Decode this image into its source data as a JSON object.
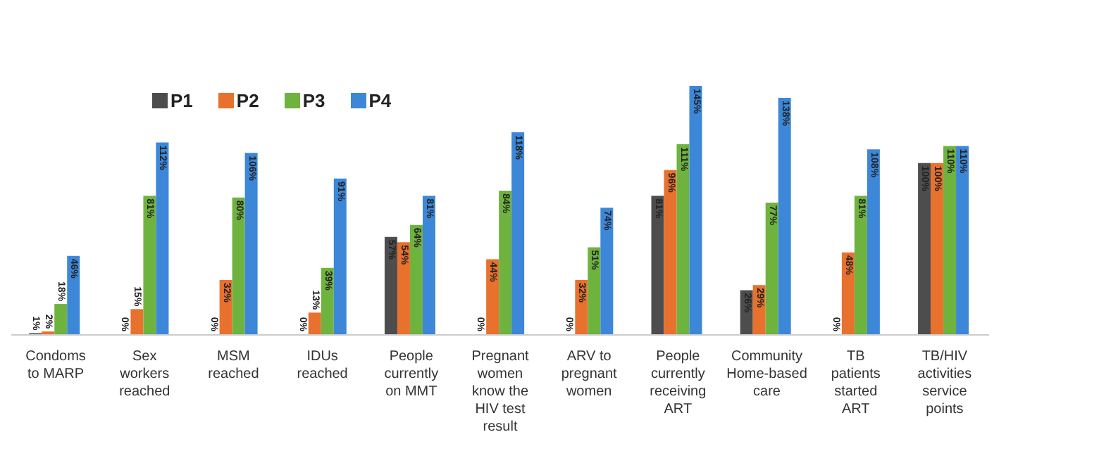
{
  "chart_data": {
    "type": "bar",
    "categories": [
      "Condoms to MARP",
      "Sex workers reached",
      "MSM reached",
      "IDUs reached",
      "People currently on MMT",
      "Pregnant women know the HIV test result",
      "ARV to pregnant women",
      "People currently receiving ART",
      "Community Home-based care",
      "TB patients started ART",
      "TB/HIV activities service points"
    ],
    "series": [
      {
        "name": "P1",
        "color": "#4d4d4d",
        "values": [
          1,
          0,
          0,
          0,
          57,
          0,
          0,
          81,
          26,
          0,
          100
        ],
        "value_labels": [
          "1%",
          "0%",
          "0%",
          "0%",
          "57%",
          "0%",
          "0%",
          "81%",
          "26%",
          "0%",
          "100%"
        ]
      },
      {
        "name": "P2",
        "color": "#e8712d",
        "values": [
          2,
          15,
          32,
          13,
          54,
          44,
          32,
          96,
          29,
          48,
          100
        ],
        "value_labels": [
          "2%",
          "15%",
          "32%",
          "13%",
          "54%",
          "44%",
          "32%",
          "96%",
          "29%",
          "48%",
          "100%"
        ]
      },
      {
        "name": "P3",
        "color": "#6fb33f",
        "values": [
          18,
          81,
          80,
          39,
          64,
          84,
          51,
          111,
          77,
          81,
          110
        ],
        "value_labels": [
          "18%",
          "81%",
          "80%",
          "39%",
          "64%",
          "84%",
          "51%",
          "111%",
          "77%",
          "81%",
          "110%"
        ]
      },
      {
        "name": "P4",
        "color": "#3d87d8",
        "values": [
          46,
          112,
          106,
          91,
          81,
          118,
          74,
          145,
          138,
          108,
          110
        ],
        "value_labels": [
          "46%",
          "112%",
          "106%",
          "91%",
          "81%",
          "118%",
          "74%",
          "145%",
          "138%",
          "108%",
          "110%"
        ]
      }
    ],
    "legend": "top left",
    "grid": false
  }
}
